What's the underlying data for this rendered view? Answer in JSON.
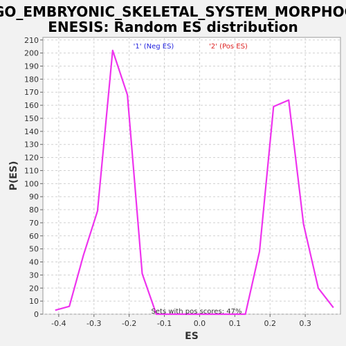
{
  "chart_data": {
    "type": "line",
    "title_lines": [
      "GO_EMBRYONIC_SKELETAL_SYSTEM_MORPHOG",
      "ENESIS: Random ES distribution"
    ],
    "xlabel": "ES",
    "ylabel": "P(ES)",
    "xlim": [
      -0.445,
      0.4
    ],
    "ylim": [
      0,
      212
    ],
    "xticks": [
      -0.4,
      -0.3,
      -0.2,
      -0.1,
      0.0,
      0.1,
      0.2,
      0.3
    ],
    "xtick_labels": [
      "-0.4",
      "-0.3",
      "-0.2",
      "-0.1",
      "0.0",
      "0.1",
      "0.2",
      "0.3"
    ],
    "yticks": [
      0,
      10,
      20,
      30,
      40,
      50,
      60,
      70,
      80,
      90,
      100,
      110,
      120,
      130,
      140,
      150,
      160,
      170,
      180,
      190,
      200,
      210
    ],
    "grid": true,
    "legend": [
      {
        "label": "'1' (Neg ES)",
        "color": "#2222dd"
      },
      {
        "label": "'2' (Pos ES)",
        "color": "#dd2222"
      }
    ],
    "annotation": "Sets with pos scores: 47%",
    "line_color": "#ee33ee",
    "series": [
      {
        "x": [
          -0.41,
          -0.37,
          -0.33,
          -0.29,
          -0.247,
          -0.205,
          -0.163,
          -0.123,
          -0.08,
          0.13,
          0.17,
          0.21,
          0.253,
          0.295,
          0.337,
          0.38
        ],
        "y": [
          3,
          6,
          45,
          79,
          202,
          168,
          31,
          0,
          0,
          0,
          48,
          159,
          164,
          69,
          20,
          5
        ]
      }
    ]
  }
}
